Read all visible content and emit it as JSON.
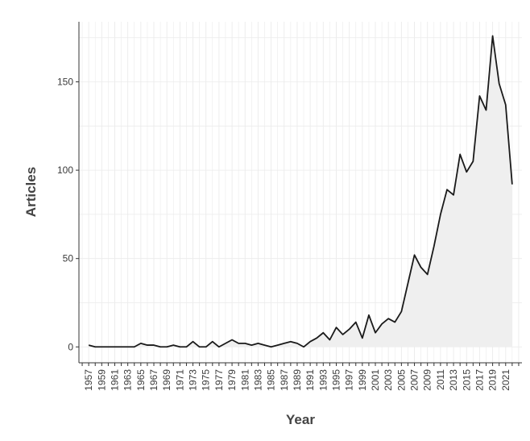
{
  "chart_data": {
    "type": "area",
    "title": "",
    "xlabel": "Year",
    "ylabel": "Articles",
    "x_tick_labels": [
      "1957",
      "1959",
      "1961",
      "1963",
      "1965",
      "1967",
      "1969",
      "1971",
      "1973",
      "1975",
      "1977",
      "1979",
      "1981",
      "1983",
      "1985",
      "1987",
      "1989",
      "1991",
      "1993",
      "1995",
      "1997",
      "1999",
      "2001",
      "2003",
      "2005",
      "2007",
      "2009",
      "2011",
      "2013",
      "2015",
      "2017",
      "2019",
      "2021"
    ],
    "y_ticks": [
      0,
      50,
      100,
      150
    ],
    "xlim": [
      1955.5,
      2023.5
    ],
    "ylim": [
      -9,
      184
    ],
    "grid": true,
    "legend": "none",
    "colors": {
      "line": "#1a1a1a",
      "fill": "#efefef",
      "grid": "#ebebeb",
      "axis": "#333333"
    },
    "x": [
      1957,
      1958,
      1959,
      1960,
      1961,
      1962,
      1963,
      1964,
      1965,
      1966,
      1967,
      1968,
      1969,
      1970,
      1971,
      1972,
      1973,
      1974,
      1975,
      1976,
      1977,
      1978,
      1979,
      1980,
      1981,
      1982,
      1983,
      1984,
      1985,
      1986,
      1987,
      1988,
      1989,
      1990,
      1991,
      1992,
      1993,
      1994,
      1995,
      1996,
      1997,
      1998,
      1999,
      2000,
      2001,
      2002,
      2003,
      2004,
      2005,
      2006,
      2007,
      2008,
      2009,
      2010,
      2011,
      2012,
      2013,
      2014,
      2015,
      2016,
      2017,
      2018,
      2019,
      2020,
      2021,
      2022
    ],
    "series": [
      {
        "values": [
          1,
          0,
          0,
          0,
          0,
          0,
          0,
          0,
          2,
          1,
          1,
          0,
          0,
          1,
          0,
          0,
          3,
          0,
          0,
          3,
          0,
          2,
          4,
          2,
          2,
          1,
          2,
          1,
          0,
          1,
          2,
          3,
          2,
          0,
          3,
          5,
          8,
          4,
          11,
          7,
          10,
          14,
          5,
          18,
          8,
          13,
          16,
          14,
          20,
          36,
          52,
          45,
          41,
          57,
          75,
          89,
          86,
          109,
          99,
          105,
          142,
          134,
          176,
          149,
          137,
          92
        ]
      }
    ]
  }
}
